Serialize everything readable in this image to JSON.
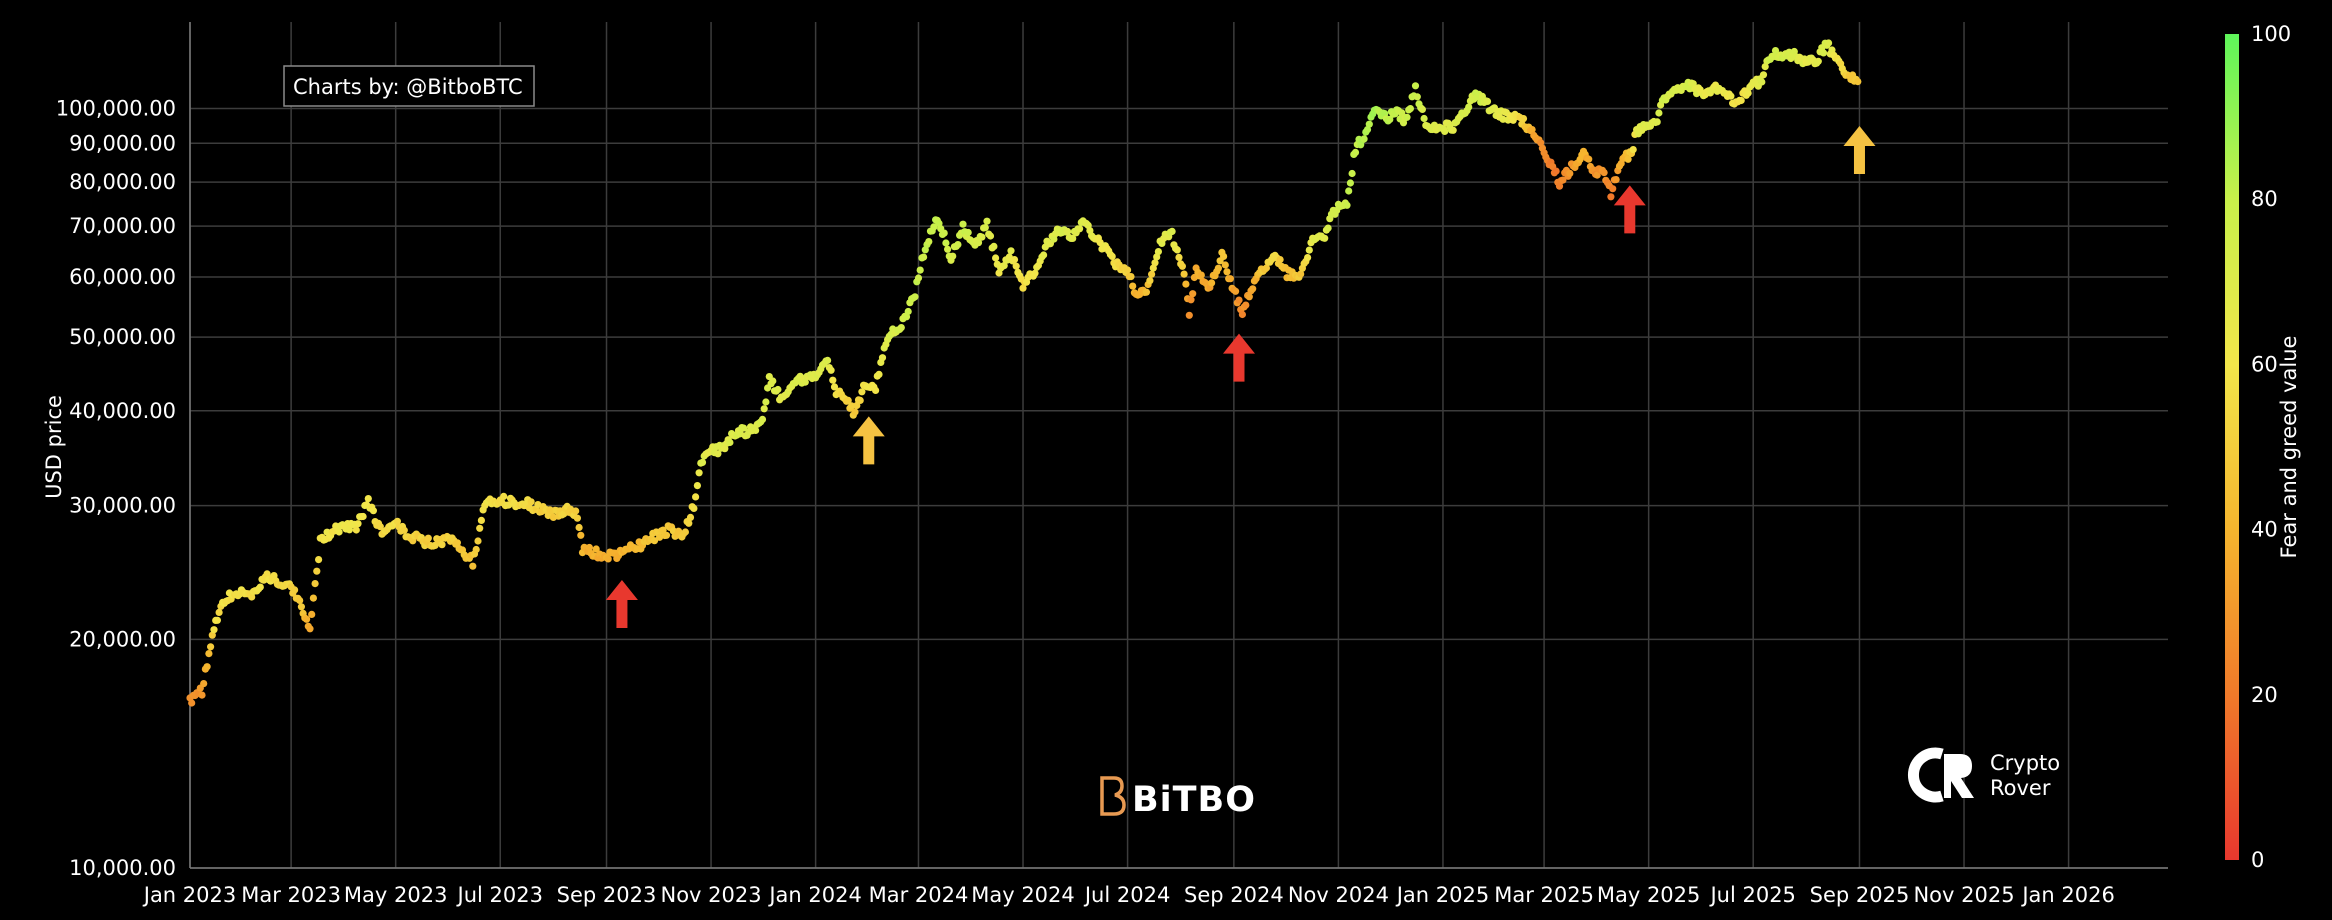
{
  "chart_data": {
    "type": "scatter",
    "credit": "Charts by: @BitboBTC",
    "ylabel": "USD price",
    "colorbar_label": "Fear and greed value",
    "y_scale": "log",
    "ylim": [
      10000,
      130000
    ],
    "xlim": [
      "2023-01-01",
      "2026-02-28"
    ],
    "y_ticks": [
      10000,
      20000,
      30000,
      40000,
      50000,
      60000,
      70000,
      80000,
      90000,
      100000
    ],
    "y_tick_labels": [
      "10,000.00",
      "20,000.00",
      "30,000.00",
      "40,000.00",
      "50,000.00",
      "60,000.00",
      "70,000.00",
      "80,000.00",
      "90,000.00",
      "100,000.00"
    ],
    "x_ticks": [
      "2023-01-01",
      "2023-03-01",
      "2023-05-01",
      "2023-07-01",
      "2023-09-01",
      "2023-11-01",
      "2024-01-01",
      "2024-03-01",
      "2024-05-01",
      "2024-07-01",
      "2024-09-01",
      "2024-11-01",
      "2025-01-01",
      "2025-03-01",
      "2025-05-01",
      "2025-07-01",
      "2025-09-01",
      "2025-11-01",
      "2026-01-01"
    ],
    "x_tick_labels": [
      "Jan 2023",
      "Mar 2023",
      "May 2023",
      "Jul 2023",
      "Sep 2023",
      "Nov 2023",
      "Jan 2024",
      "Mar 2024",
      "May 2024",
      "Jul 2024",
      "Sep 2024",
      "Nov 2024",
      "Jan 2025",
      "Mar 2025",
      "May 2025",
      "Jul 2025",
      "Sep 2025",
      "Nov 2025",
      "Jan 2026"
    ],
    "colorbar_ticks": [
      0,
      20,
      40,
      60,
      80,
      100
    ],
    "colorscale": [
      "#e8382e",
      "#f07a2a",
      "#f5b52e",
      "#f2e64a",
      "#c8f04a",
      "#5ef55a"
    ],
    "grid": true,
    "series": [
      {
        "points": [
          [
            "2023-01-01",
            16600,
            25
          ],
          [
            "2023-01-08",
            17100,
            30
          ],
          [
            "2023-01-15",
            20800,
            55
          ],
          [
            "2023-01-22",
            22700,
            58
          ],
          [
            "2023-02-01",
            23100,
            58
          ],
          [
            "2023-02-08",
            23000,
            56
          ],
          [
            "2023-02-15",
            24300,
            58
          ],
          [
            "2023-02-22",
            23800,
            55
          ],
          [
            "2023-03-01",
            23500,
            52
          ],
          [
            "2023-03-08",
            21800,
            48
          ],
          [
            "2023-03-12",
            20400,
            35
          ],
          [
            "2023-03-18",
            26900,
            60
          ],
          [
            "2023-03-25",
            27700,
            60
          ],
          [
            "2023-04-01",
            28300,
            62
          ],
          [
            "2023-04-08",
            28000,
            60
          ],
          [
            "2023-04-15",
            30300,
            62
          ],
          [
            "2023-04-22",
            27800,
            55
          ],
          [
            "2023-05-01",
            28600,
            56
          ],
          [
            "2023-05-08",
            27500,
            52
          ],
          [
            "2023-05-15",
            27000,
            52
          ],
          [
            "2023-05-22",
            26800,
            50
          ],
          [
            "2023-06-01",
            27000,
            52
          ],
          [
            "2023-06-08",
            26400,
            48
          ],
          [
            "2023-06-15",
            25300,
            47
          ],
          [
            "2023-06-22",
            30200,
            60
          ],
          [
            "2023-07-01",
            30500,
            56
          ],
          [
            "2023-07-08",
            30300,
            56
          ],
          [
            "2023-07-15",
            30300,
            55
          ],
          [
            "2023-07-22",
            29800,
            52
          ],
          [
            "2023-08-01",
            29300,
            50
          ],
          [
            "2023-08-08",
            29600,
            52
          ],
          [
            "2023-08-15",
            29100,
            50
          ],
          [
            "2023-08-18",
            26300,
            40
          ],
          [
            "2023-08-25",
            26000,
            38
          ],
          [
            "2023-09-01",
            25800,
            38
          ],
          [
            "2023-09-08",
            25900,
            38
          ],
          [
            "2023-09-15",
            26500,
            42
          ],
          [
            "2023-09-22",
            26600,
            44
          ],
          [
            "2023-10-01",
            27500,
            48
          ],
          [
            "2023-10-08",
            27900,
            48
          ],
          [
            "2023-10-15",
            27200,
            48
          ],
          [
            "2023-10-22",
            30000,
            58
          ],
          [
            "2023-10-26",
            34400,
            68
          ],
          [
            "2023-11-01",
            35400,
            68
          ],
          [
            "2023-11-08",
            35600,
            68
          ],
          [
            "2023-11-15",
            37400,
            70
          ],
          [
            "2023-11-22",
            37600,
            70
          ],
          [
            "2023-12-01",
            38700,
            72
          ],
          [
            "2023-12-05",
            44000,
            72
          ],
          [
            "2023-12-12",
            41500,
            68
          ],
          [
            "2023-12-20",
            43700,
            70
          ],
          [
            "2024-01-01",
            44200,
            68
          ],
          [
            "2024-01-08",
            46900,
            72
          ],
          [
            "2024-01-12",
            42800,
            58
          ],
          [
            "2024-01-18",
            41500,
            52
          ],
          [
            "2024-01-23",
            39800,
            48
          ],
          [
            "2024-01-29",
            42900,
            58
          ],
          [
            "2024-02-05",
            43000,
            60
          ],
          [
            "2024-02-12",
            49900,
            72
          ],
          [
            "2024-02-20",
            52100,
            74
          ],
          [
            "2024-02-28",
            57000,
            78
          ],
          [
            "2024-03-05",
            66000,
            80
          ],
          [
            "2024-03-12",
            71800,
            82
          ],
          [
            "2024-03-20",
            63800,
            74
          ],
          [
            "2024-03-27",
            69500,
            78
          ],
          [
            "2024-04-03",
            66000,
            72
          ],
          [
            "2024-04-10",
            70500,
            72
          ],
          [
            "2024-04-17",
            61300,
            62
          ],
          [
            "2024-04-24",
            64200,
            66
          ],
          [
            "2024-05-01",
            58400,
            55
          ],
          [
            "2024-05-08",
            61200,
            62
          ],
          [
            "2024-05-15",
            66000,
            68
          ],
          [
            "2024-05-22",
            69300,
            72
          ],
          [
            "2024-05-29",
            67600,
            70
          ],
          [
            "2024-06-05",
            71000,
            70
          ],
          [
            "2024-06-12",
            67500,
            64
          ],
          [
            "2024-06-19",
            65000,
            60
          ],
          [
            "2024-06-26",
            61600,
            54
          ],
          [
            "2024-07-03",
            60200,
            48
          ],
          [
            "2024-07-06",
            56700,
            35
          ],
          [
            "2024-07-13",
            57900,
            45
          ],
          [
            "2024-07-20",
            67000,
            68
          ],
          [
            "2024-07-27",
            68000,
            70
          ],
          [
            "2024-08-03",
            60700,
            48
          ],
          [
            "2024-08-06",
            54000,
            28
          ],
          [
            "2024-08-10",
            60900,
            38
          ],
          [
            "2024-08-18",
            58400,
            36
          ],
          [
            "2024-08-25",
            64000,
            48
          ],
          [
            "2024-09-01",
            57700,
            32
          ],
          [
            "2024-09-06",
            53900,
            26
          ],
          [
            "2024-09-12",
            58100,
            36
          ],
          [
            "2024-09-18",
            61700,
            48
          ],
          [
            "2024-09-25",
            64100,
            55
          ],
          [
            "2024-10-02",
            60600,
            42
          ],
          [
            "2024-10-10",
            60300,
            48
          ],
          [
            "2024-10-17",
            67400,
            68
          ],
          [
            "2024-10-24",
            68200,
            70
          ],
          [
            "2024-10-29",
            72700,
            74
          ],
          [
            "2024-11-06",
            75600,
            78
          ],
          [
            "2024-11-11",
            88700,
            82
          ],
          [
            "2024-11-15",
            91000,
            84
          ],
          [
            "2024-11-22",
            99000,
            86
          ],
          [
            "2024-11-29",
            97400,
            82
          ],
          [
            "2024-12-05",
            98900,
            80
          ],
          [
            "2024-12-10",
            96600,
            76
          ],
          [
            "2024-12-16",
            106000,
            80
          ],
          [
            "2024-12-23",
            94800,
            70
          ],
          [
            "2025-01-01",
            94400,
            68
          ],
          [
            "2025-01-08",
            95000,
            70
          ],
          [
            "2025-01-15",
            100500,
            72
          ],
          [
            "2025-01-20",
            105000,
            76
          ],
          [
            "2025-01-27",
            101000,
            72
          ],
          [
            "2025-02-03",
            98000,
            66
          ],
          [
            "2025-02-10",
            97500,
            62
          ],
          [
            "2025-02-17",
            95800,
            52
          ],
          [
            "2025-02-24",
            91500,
            32
          ],
          [
            "2025-03-03",
            86000,
            22
          ],
          [
            "2025-03-10",
            80000,
            20
          ],
          [
            "2025-03-17",
            83500,
            30
          ],
          [
            "2025-03-24",
            87500,
            40
          ],
          [
            "2025-03-31",
            82500,
            28
          ],
          [
            "2025-04-05",
            83000,
            30
          ],
          [
            "2025-04-09",
            77000,
            20
          ],
          [
            "2025-04-14",
            84500,
            35
          ],
          [
            "2025-04-21",
            87500,
            48
          ],
          [
            "2025-04-24",
            93500,
            68
          ],
          [
            "2025-05-01",
            95000,
            68
          ],
          [
            "2025-05-06",
            96800,
            70
          ],
          [
            "2025-05-10",
            103000,
            74
          ],
          [
            "2025-05-17",
            105000,
            72
          ],
          [
            "2025-05-24",
            108000,
            74
          ],
          [
            "2025-06-01",
            104500,
            64
          ],
          [
            "2025-06-08",
            106000,
            66
          ],
          [
            "2025-06-15",
            105500,
            62
          ],
          [
            "2025-06-22",
            101000,
            56
          ],
          [
            "2025-06-29",
            107000,
            64
          ],
          [
            "2025-07-06",
            109000,
            68
          ],
          [
            "2025-07-11",
            117500,
            76
          ],
          [
            "2025-07-18",
            118000,
            74
          ],
          [
            "2025-07-25",
            117500,
            72
          ],
          [
            "2025-08-01",
            115000,
            66
          ],
          [
            "2025-08-08",
            116500,
            68
          ],
          [
            "2025-08-13",
            122000,
            72
          ],
          [
            "2025-08-18",
            115800,
            62
          ],
          [
            "2025-08-25",
            111500,
            50
          ],
          [
            "2025-08-31",
            108500,
            46
          ]
        ]
      }
    ],
    "annotations": [
      {
        "type": "arrow-up",
        "color": "#e8382e",
        "x": "2023-09-10",
        "y": 20700
      },
      {
        "type": "arrow-up",
        "color": "#f5c242",
        "x": "2024-02-01",
        "y": 34000
      },
      {
        "type": "arrow-up",
        "color": "#e8382e",
        "x": "2024-09-04",
        "y": 43700
      },
      {
        "type": "arrow-up",
        "color": "#e8382e",
        "x": "2025-04-20",
        "y": 68500
      },
      {
        "type": "arrow-up",
        "color": "#f5c242",
        "x": "2025-09-01",
        "y": 82000
      }
    ]
  }
}
